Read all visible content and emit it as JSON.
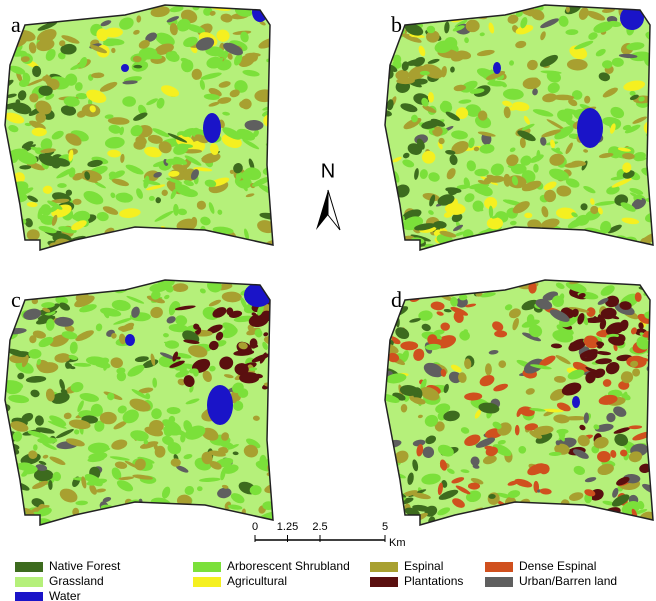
{
  "panels": [
    {
      "label": "a"
    },
    {
      "label": "b"
    },
    {
      "label": "c"
    },
    {
      "label": "d"
    }
  ],
  "north_arrow": {
    "label": "N"
  },
  "scale_bar": {
    "ticks": [
      0,
      1.25,
      2.5,
      5
    ],
    "unit": "Km"
  },
  "legend": [
    {
      "name": "Native Forest",
      "color": "#3d6b1e"
    },
    {
      "name": "Grassland",
      "color": "#b5f07a"
    },
    {
      "name": "Water",
      "color": "#1a14c8"
    },
    {
      "name": "Arborescent Shrubland",
      "color": "#7be03a"
    },
    {
      "name": "Agricultural",
      "color": "#f5f020"
    },
    {
      "name": "Espinal",
      "color": "#a8a030"
    },
    {
      "name": "Plantations",
      "color": "#5a0f0f"
    },
    {
      "name": "Dense Espinal",
      "color": "#d0501e"
    },
    {
      "name": "Urban/Barren land",
      "color": "#5f5f5f"
    }
  ]
}
